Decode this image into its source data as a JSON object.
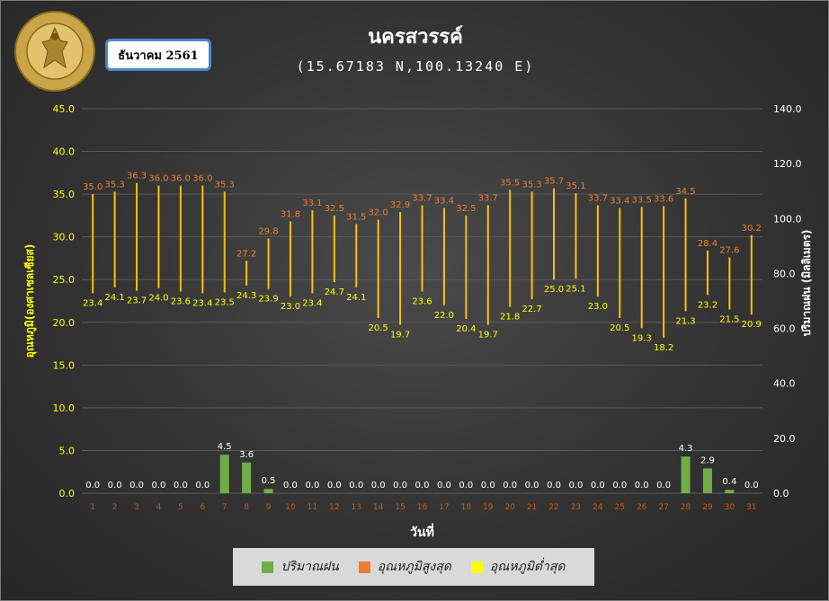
{
  "header": {
    "title": "นครสวรรค์",
    "coordinates": "(15.67183 N,100.13240 E)",
    "month": "ธันวาคม 2561",
    "logo_text_top": "กรมอุตุนิยมวิทยา",
    "logo_text_bottom": "METEOROLOGICAL DEPARTMENT"
  },
  "chart_data": {
    "type": "bar",
    "xlabel": "วันที่",
    "ylabel_left": "อุณหภูมิ(องศาเซลเซียส)",
    "ylabel_right": "ปริมาณฝน (มิลลิเมตร)",
    "ylim_left": [
      0,
      45
    ],
    "ylim_right": [
      0,
      140
    ],
    "yticks_left": [
      "0.0",
      "5.0",
      "10.0",
      "15.0",
      "20.0",
      "25.0",
      "30.0",
      "35.0",
      "40.0",
      "45.0"
    ],
    "yticks_right": [
      "0.0",
      "20.0",
      "40.0",
      "60.0",
      "80.0",
      "100.0",
      "120.0",
      "140.0"
    ],
    "grid": true,
    "legend_position": "bottom",
    "categories": [
      "1",
      "2",
      "3",
      "4",
      "5",
      "6",
      "7",
      "8",
      "9",
      "10",
      "11",
      "12",
      "13",
      "14",
      "15",
      "16",
      "17",
      "18",
      "19",
      "20",
      "21",
      "22",
      "23",
      "24",
      "25",
      "26",
      "27",
      "28",
      "29",
      "30",
      "31"
    ],
    "series": [
      {
        "name": "ปริมาณฝน",
        "axis": "left",
        "color": "#70ad47",
        "values": [
          0.0,
          0.0,
          0.0,
          0.0,
          0.0,
          0.0,
          4.5,
          3.6,
          0.5,
          0.0,
          0.0,
          0.0,
          0.0,
          0.0,
          0.0,
          0.0,
          0.0,
          0.0,
          0.0,
          0.0,
          0.0,
          0.0,
          0.0,
          0.0,
          0.0,
          0.0,
          0.0,
          4.3,
          2.9,
          0.4,
          0.0
        ]
      },
      {
        "name": "อุณหภูมิสูงสุด",
        "color": "#ed7d31",
        "values": [
          35.0,
          35.3,
          36.3,
          36.0,
          36.0,
          36.0,
          35.3,
          27.2,
          29.8,
          31.8,
          33.1,
          32.5,
          31.5,
          32.0,
          32.9,
          33.7,
          33.4,
          32.5,
          33.7,
          35.5,
          35.3,
          35.7,
          35.1,
          33.7,
          33.4,
          33.5,
          33.6,
          34.5,
          28.4,
          27.6,
          30.2
        ]
      },
      {
        "name": "อุณหภูมิต่ำสุด",
        "color": "#ffff00",
        "values": [
          23.4,
          24.1,
          23.7,
          24.0,
          23.6,
          23.4,
          23.5,
          24.3,
          23.9,
          23.0,
          23.4,
          24.7,
          24.1,
          20.5,
          19.7,
          23.6,
          22.0,
          20.4,
          19.7,
          21.8,
          22.7,
          25.0,
          25.1,
          23.0,
          20.5,
          19.3,
          18.2,
          21.3,
          23.2,
          21.5,
          20.9
        ]
      }
    ],
    "range_line_color": "#ffc000"
  },
  "legend": {
    "rain": "ปริมาณฝน",
    "max": "อุณหภูมิสูงสุด",
    "min": "อุณหภูมิต่ำสุด"
  }
}
